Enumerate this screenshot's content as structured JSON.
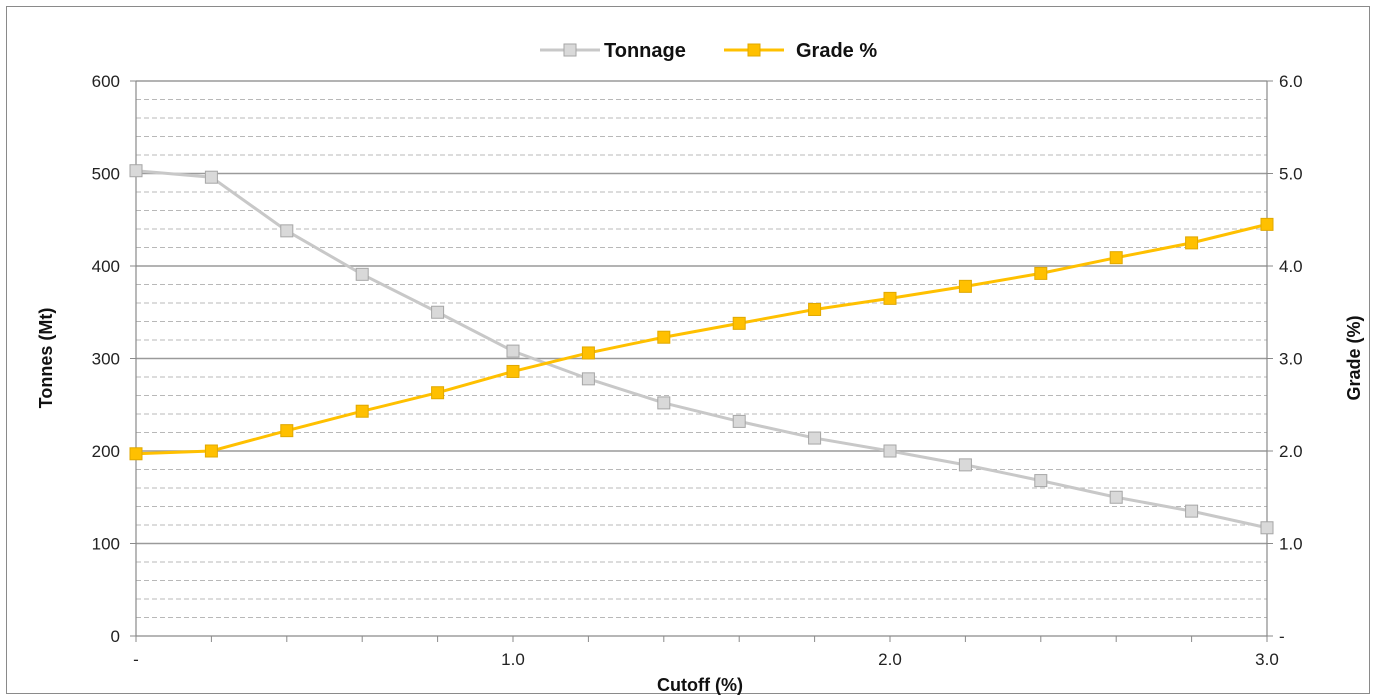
{
  "chart_data": {
    "type": "line",
    "title": "",
    "xlabel": "Cutoff (%)",
    "ylabel": "Tonnes (Mt)",
    "y2label": "Grade (%)",
    "x": [
      0,
      0.2,
      0.4,
      0.6,
      0.8,
      1.0,
      1.2,
      1.4,
      1.6,
      1.8,
      2.0,
      2.2,
      2.4,
      2.6,
      2.8,
      3.0
    ],
    "xlim": [
      0,
      3.0
    ],
    "ylim": [
      0,
      600
    ],
    "y2lim": [
      0,
      6.0
    ],
    "x_ticks": [
      "-",
      "1.0",
      "2.0",
      "3.0"
    ],
    "y_ticks": [
      "0",
      "100",
      "200",
      "300",
      "400",
      "500",
      "600"
    ],
    "y2_ticks": [
      "-",
      "1.0",
      "2.0",
      "3.0",
      "4.0",
      "5.0",
      "6.0"
    ],
    "grid": true,
    "legend_position": "top-center",
    "series": [
      {
        "name": "Tonnage",
        "axis": "left",
        "color": "#c8c8c8",
        "marker_color": "#d9d9d9",
        "values": [
          503,
          496,
          438,
          391,
          350,
          308,
          278,
          252,
          232,
          214,
          200,
          185,
          168,
          150,
          135,
          117
        ]
      },
      {
        "name": "Grade %",
        "axis": "right",
        "color": "#ffc000",
        "marker_color": "#ffc000",
        "values": [
          1.97,
          2.0,
          2.22,
          2.43,
          2.63,
          2.86,
          3.06,
          3.23,
          3.38,
          3.53,
          3.65,
          3.78,
          3.92,
          4.09,
          4.25,
          4.45
        ]
      }
    ]
  }
}
